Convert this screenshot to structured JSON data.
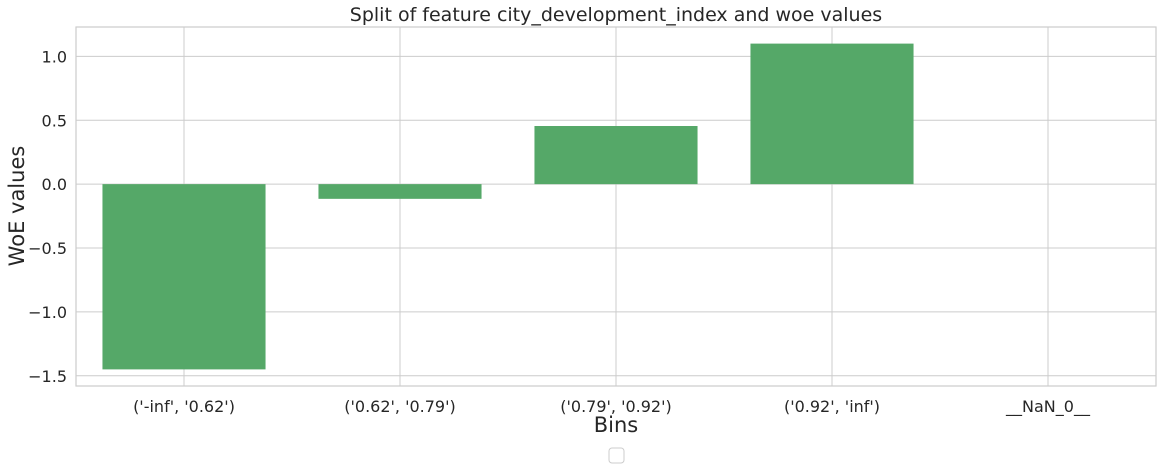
{
  "chart_data": {
    "type": "bar",
    "title": "Split of feature city_development_index and woe values",
    "xlabel": "Bins",
    "ylabel": "WoE values",
    "categories": [
      "('-inf', '0.62')",
      "('0.62', '0.79')",
      "('0.79', '0.92')",
      "('0.92', 'inf')",
      "__NaN_0__"
    ],
    "values": [
      -1.45,
      -0.115,
      0.455,
      1.1,
      0.0
    ],
    "ylim": [
      -1.58,
      1.23
    ],
    "yticks": [
      1.0,
      0.5,
      0.0,
      -0.5,
      -1.0,
      -1.5
    ],
    "ytick_labels": [
      "1.0",
      "0.5",
      "0.0",
      "−0.5",
      "−1.0",
      "−1.5"
    ],
    "bar_color": "#55a868",
    "grid": true,
    "legend": {
      "placement": "bottom-center",
      "entries": []
    }
  }
}
